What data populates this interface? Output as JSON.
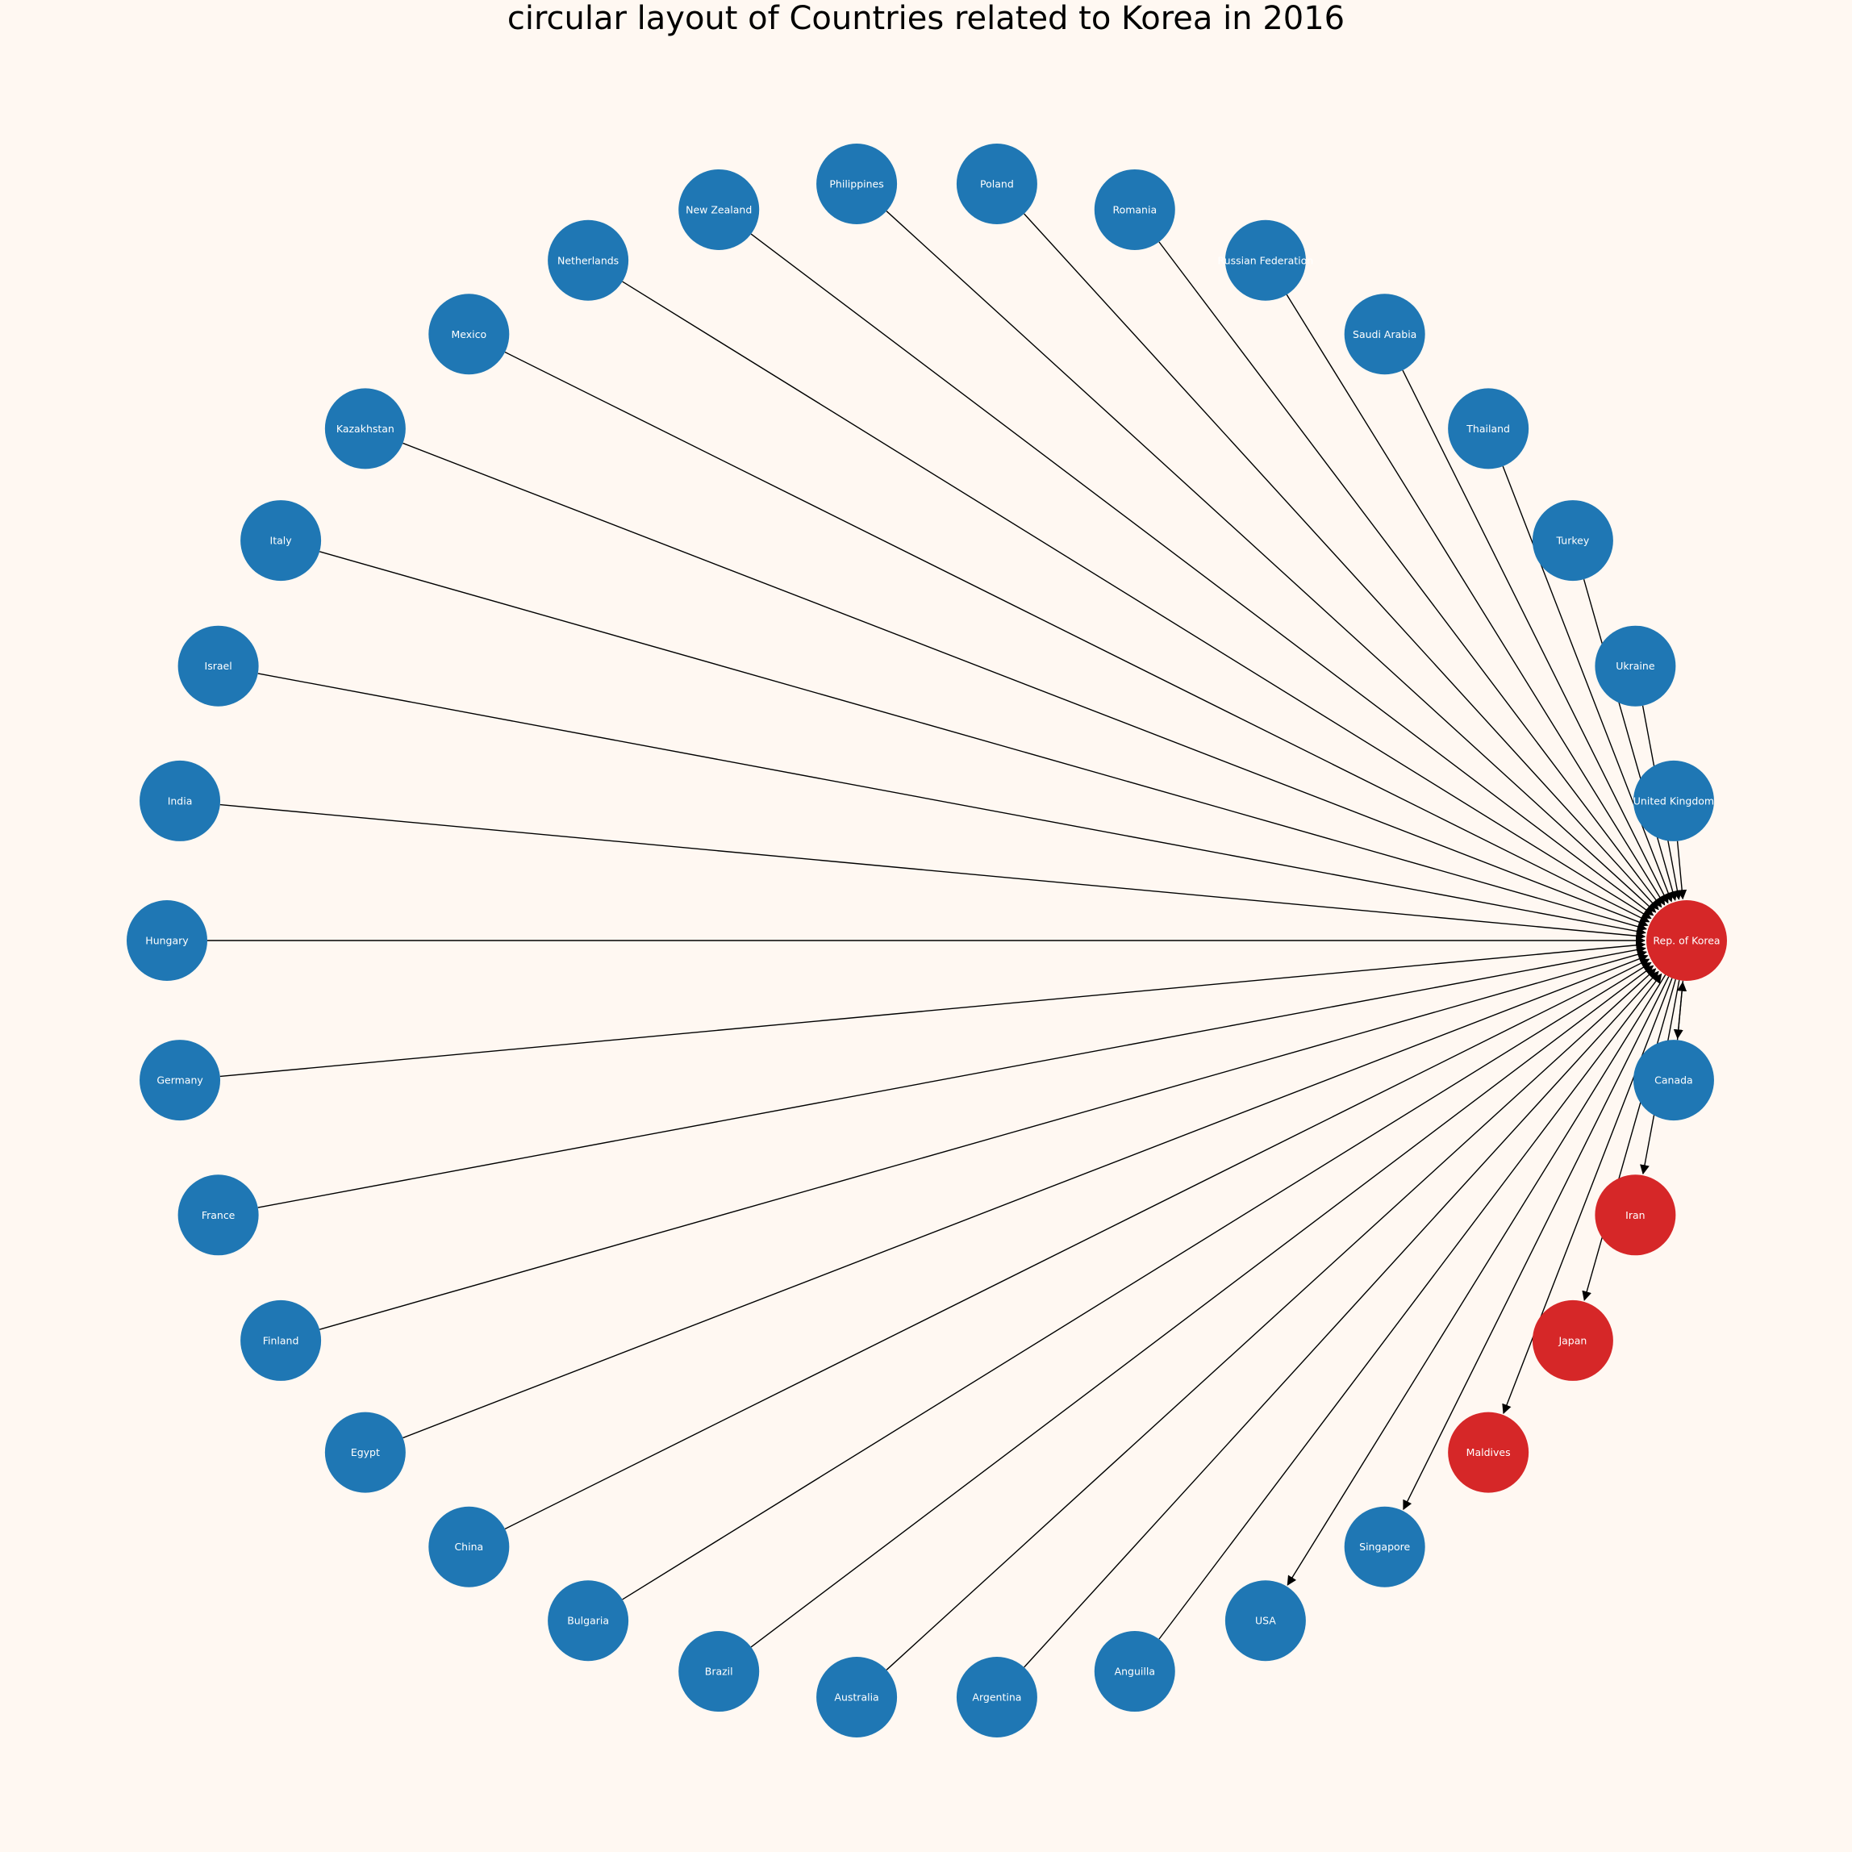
{
  "title": "circular layout of Countries related to Korea in 2016",
  "colors": {
    "background": "#fff8f2",
    "node_default": "#1f77b4",
    "node_highlight": "#d62728",
    "edge": "#000000",
    "label": "#ffffff"
  },
  "graph": {
    "layout": "circular",
    "center_node": "Rep. of Korea",
    "nodes": [
      {
        "id": "Rep. of Korea",
        "highlight": true
      },
      {
        "id": "United Kingdom",
        "highlight": false
      },
      {
        "id": "Ukraine",
        "highlight": false
      },
      {
        "id": "Turkey",
        "highlight": false
      },
      {
        "id": "Thailand",
        "highlight": false
      },
      {
        "id": "Saudi Arabia",
        "highlight": false
      },
      {
        "id": "Russian Federation",
        "highlight": false
      },
      {
        "id": "Romania",
        "highlight": false
      },
      {
        "id": "Poland",
        "highlight": false
      },
      {
        "id": "Philippines",
        "highlight": false
      },
      {
        "id": "New Zealand",
        "highlight": false
      },
      {
        "id": "Netherlands",
        "highlight": false
      },
      {
        "id": "Mexico",
        "highlight": false
      },
      {
        "id": "Kazakhstan",
        "highlight": false
      },
      {
        "id": "Italy",
        "highlight": false
      },
      {
        "id": "Israel",
        "highlight": false
      },
      {
        "id": "India",
        "highlight": false
      },
      {
        "id": "Hungary",
        "highlight": false
      },
      {
        "id": "Germany",
        "highlight": false
      },
      {
        "id": "France",
        "highlight": false
      },
      {
        "id": "Finland",
        "highlight": false
      },
      {
        "id": "Egypt",
        "highlight": false
      },
      {
        "id": "China",
        "highlight": false
      },
      {
        "id": "Bulgaria",
        "highlight": false
      },
      {
        "id": "Brazil",
        "highlight": false
      },
      {
        "id": "Australia",
        "highlight": false
      },
      {
        "id": "Argentina",
        "highlight": false
      },
      {
        "id": "Anguilla",
        "highlight": false
      },
      {
        "id": "USA",
        "highlight": false
      },
      {
        "id": "Singapore",
        "highlight": false
      },
      {
        "id": "Maldives",
        "highlight": true
      },
      {
        "id": "Japan",
        "highlight": true
      },
      {
        "id": "Iran",
        "highlight": true
      },
      {
        "id": "Canada",
        "highlight": false
      }
    ],
    "edges": [
      {
        "source": "Rep. of Korea",
        "target": "USA"
      },
      {
        "source": "Rep. of Korea",
        "target": "Singapore"
      },
      {
        "source": "Rep. of Korea",
        "target": "Maldives"
      },
      {
        "source": "Rep. of Korea",
        "target": "Japan"
      },
      {
        "source": "Rep. of Korea",
        "target": "Iran"
      },
      {
        "source": "Rep. of Korea",
        "target": "Canada"
      },
      {
        "source": "Canada",
        "target": "Rep. of Korea"
      },
      {
        "source": "United Kingdom",
        "target": "Rep. of Korea"
      },
      {
        "source": "Ukraine",
        "target": "Rep. of Korea"
      },
      {
        "source": "Turkey",
        "target": "Rep. of Korea"
      },
      {
        "source": "Thailand",
        "target": "Rep. of Korea"
      },
      {
        "source": "Saudi Arabia",
        "target": "Rep. of Korea"
      },
      {
        "source": "Russian Federation",
        "target": "Rep. of Korea"
      },
      {
        "source": "Romania",
        "target": "Rep. of Korea"
      },
      {
        "source": "Poland",
        "target": "Rep. of Korea"
      },
      {
        "source": "Philippines",
        "target": "Rep. of Korea"
      },
      {
        "source": "New Zealand",
        "target": "Rep. of Korea"
      },
      {
        "source": "Netherlands",
        "target": "Rep. of Korea"
      },
      {
        "source": "Mexico",
        "target": "Rep. of Korea"
      },
      {
        "source": "Kazakhstan",
        "target": "Rep. of Korea"
      },
      {
        "source": "Italy",
        "target": "Rep. of Korea"
      },
      {
        "source": "Israel",
        "target": "Rep. of Korea"
      },
      {
        "source": "India",
        "target": "Rep. of Korea"
      },
      {
        "source": "Hungary",
        "target": "Rep. of Korea"
      },
      {
        "source": "Germany",
        "target": "Rep. of Korea"
      },
      {
        "source": "France",
        "target": "Rep. of Korea"
      },
      {
        "source": "Finland",
        "target": "Rep. of Korea"
      },
      {
        "source": "Egypt",
        "target": "Rep. of Korea"
      },
      {
        "source": "China",
        "target": "Rep. of Korea"
      },
      {
        "source": "Bulgaria",
        "target": "Rep. of Korea"
      },
      {
        "source": "Brazil",
        "target": "Rep. of Korea"
      },
      {
        "source": "Australia",
        "target": "Rep. of Korea"
      },
      {
        "source": "Argentina",
        "target": "Rep. of Korea"
      },
      {
        "source": "Anguilla",
        "target": "Rep. of Korea"
      }
    ]
  }
}
